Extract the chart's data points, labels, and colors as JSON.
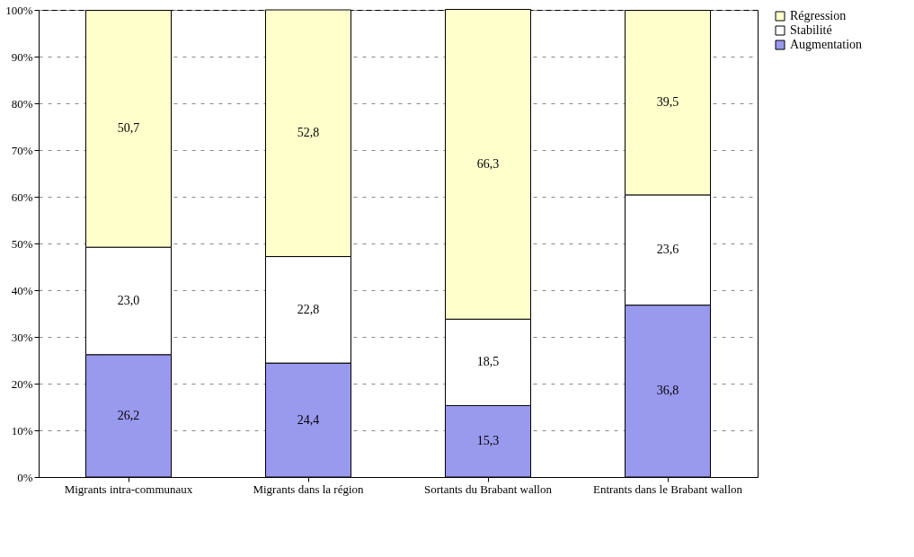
{
  "chart_data": {
    "type": "bar",
    "stacked": true,
    "categories": [
      "Migrants intra-communaux",
      "Migrants dans la région",
      "Sortants du Brabant wallon",
      "Entrants dans le Brabant wallon"
    ],
    "series": [
      {
        "name": "Augmentation",
        "color": "#9999ee",
        "values": [
          26.2,
          24.4,
          15.3,
          36.8
        ],
        "value_labels": [
          "26,2",
          "24,4",
          "15,3",
          "36,8"
        ]
      },
      {
        "name": "Stabilité",
        "color": "#ffffff",
        "values": [
          23.0,
          22.8,
          18.5,
          23.6
        ],
        "value_labels": [
          "23,0",
          "22,8",
          "18,5",
          "23,6"
        ]
      },
      {
        "name": "Régression",
        "color": "#ffffcc",
        "values": [
          50.7,
          52.8,
          66.3,
          39.5
        ],
        "value_labels": [
          "50,7",
          "52,8",
          "66,3",
          "39,5"
        ]
      }
    ],
    "ylim": [
      0,
      100
    ],
    "yticks": [
      {
        "value": 0,
        "label": "0%"
      },
      {
        "value": 10,
        "label": "10%"
      },
      {
        "value": 20,
        "label": "20%"
      },
      {
        "value": 30,
        "label": "30%"
      },
      {
        "value": 40,
        "label": "40%"
      },
      {
        "value": 50,
        "label": "50%"
      },
      {
        "value": 60,
        "label": "60%"
      },
      {
        "value": 70,
        "label": "70%"
      },
      {
        "value": 80,
        "label": "80%"
      },
      {
        "value": 90,
        "label": "90%"
      },
      {
        "value": 100,
        "label": "100%"
      }
    ],
    "grid": "y",
    "legend": "right"
  }
}
